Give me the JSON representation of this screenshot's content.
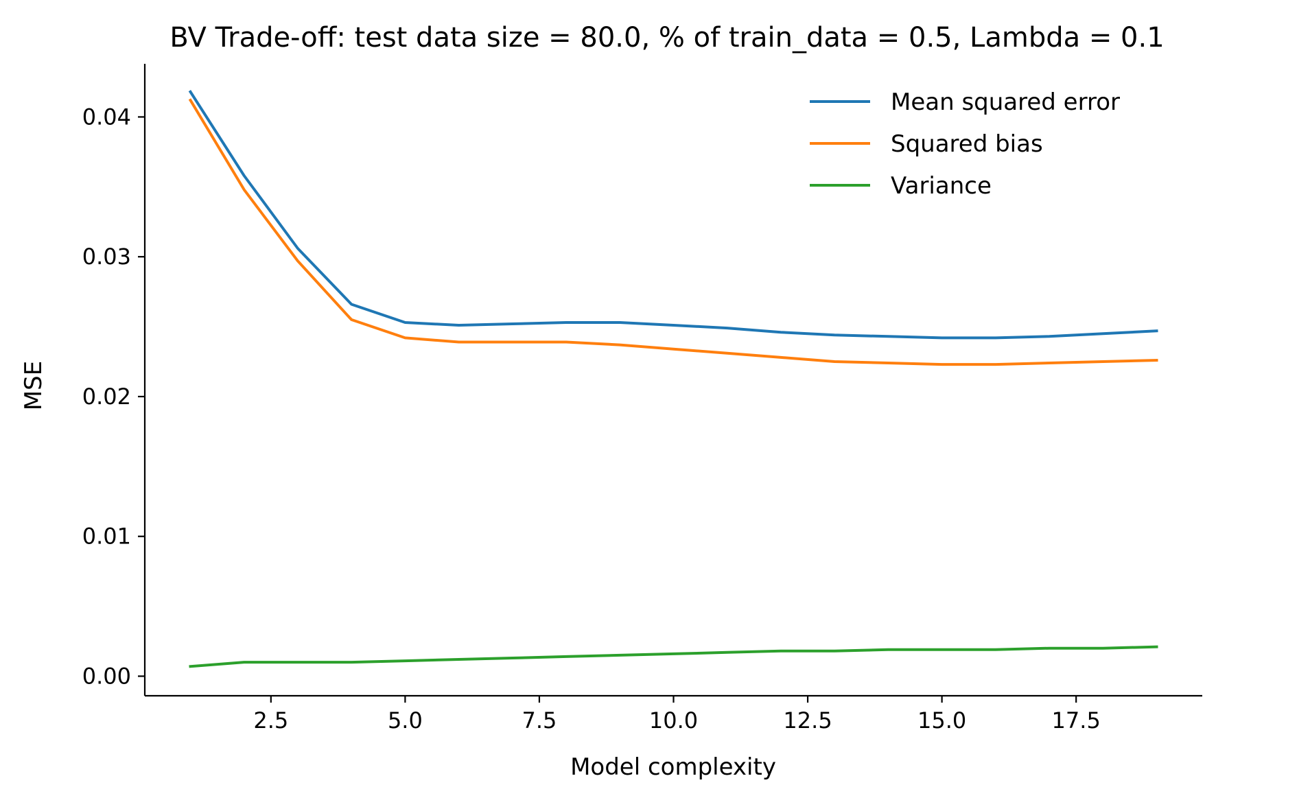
{
  "chart_data": {
    "type": "line",
    "title": "BV Trade-off: test data size = 80.0, % of train_data = 0.5, Lambda = 0.1",
    "xlabel": "Model complexity",
    "ylabel": "MSE",
    "x": [
      1,
      2,
      3,
      4,
      5,
      6,
      7,
      8,
      9,
      10,
      11,
      12,
      13,
      14,
      15,
      16,
      17,
      18,
      19
    ],
    "xlim": [
      0.15,
      19.85
    ],
    "ylim": [
      -0.0014,
      0.0438
    ],
    "xticks": [
      2.5,
      5.0,
      7.5,
      10.0,
      12.5,
      15.0,
      17.5
    ],
    "xtick_labels": [
      "2.5",
      "5.0",
      "7.5",
      "10.0",
      "12.5",
      "15.0",
      "17.5"
    ],
    "yticks": [
      0.0,
      0.01,
      0.02,
      0.03,
      0.04
    ],
    "ytick_labels": [
      "0.00",
      "0.01",
      "0.02",
      "0.03",
      "0.04"
    ],
    "grid": false,
    "legend_position": "upper-right",
    "series": [
      {
        "name": "Mean squared error",
        "color": "#1f77b4",
        "values": [
          0.0418,
          0.0358,
          0.0306,
          0.0266,
          0.0253,
          0.0251,
          0.0252,
          0.0253,
          0.0253,
          0.0251,
          0.0249,
          0.0246,
          0.0244,
          0.0243,
          0.0242,
          0.0242,
          0.0243,
          0.0245,
          0.0247
        ]
      },
      {
        "name": "Squared bias",
        "color": "#ff7f0e",
        "values": [
          0.0412,
          0.0348,
          0.0297,
          0.0255,
          0.0242,
          0.0239,
          0.0239,
          0.0239,
          0.0237,
          0.0234,
          0.0231,
          0.0228,
          0.0225,
          0.0224,
          0.0223,
          0.0223,
          0.0224,
          0.0225,
          0.0226
        ]
      },
      {
        "name": "Variance",
        "color": "#2ca02c",
        "values": [
          0.0007,
          0.001,
          0.001,
          0.001,
          0.0011,
          0.0012,
          0.0013,
          0.0014,
          0.0015,
          0.0016,
          0.0017,
          0.0018,
          0.0018,
          0.0019,
          0.0019,
          0.0019,
          0.002,
          0.002,
          0.0021
        ]
      }
    ]
  }
}
